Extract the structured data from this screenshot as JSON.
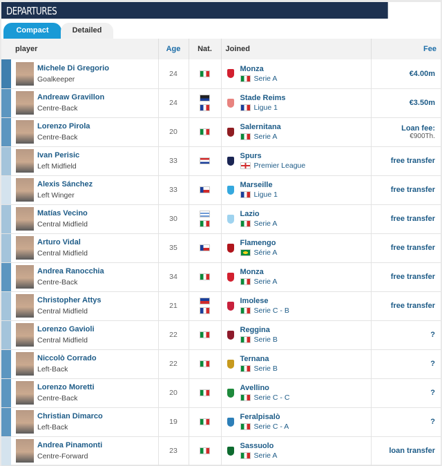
{
  "title": "DEPARTURES",
  "tabs": [
    {
      "label": "Compact",
      "active": true
    },
    {
      "label": "Detailed",
      "active": false
    }
  ],
  "columns": {
    "player": "player",
    "age": "Age",
    "nat": "Nat.",
    "joined": "Joined",
    "fee": "Fee"
  },
  "position_colors": {
    "GK": "#3f7fae",
    "DEF": "#5c96c0",
    "MID": "#a4c4db",
    "FW": "#d4e3ee"
  },
  "rows": [
    {
      "name": "Michele Di Gregorio",
      "position": "Goalkeeper",
      "group": "GK",
      "age": "24",
      "nat": [
        "it"
      ],
      "club": "Monza",
      "club_color": "#d2202f",
      "league_flag": "it",
      "league": "Serie A",
      "fee": "€4.00m"
    },
    {
      "name": "Andreaw Gravillon",
      "position": "Centre-Back",
      "group": "DEF",
      "age": "24",
      "nat": [
        "gp",
        "fr"
      ],
      "club": "Stade Reims",
      "club_color": "#e8837f",
      "league_flag": "fr",
      "league": "Ligue 1",
      "fee": "€3.50m"
    },
    {
      "name": "Lorenzo Pirola",
      "position": "Centre-Back",
      "group": "DEF",
      "age": "20",
      "nat": [
        "it"
      ],
      "club": "Salernitana",
      "club_color": "#8f1d22",
      "league_flag": "it",
      "league": "Serie A",
      "fee": "Loan fee:",
      "fee_sub": "€900Th."
    },
    {
      "name": "Ivan Perisic",
      "position": "Left Midfield",
      "group": "MID",
      "age": "33",
      "nat": [
        "hr"
      ],
      "club": "Spurs",
      "club_color": "#1a2553",
      "league_flag": "en",
      "league": "Premier League",
      "fee": "free transfer"
    },
    {
      "name": "Alexis Sánchez",
      "position": "Left Winger",
      "group": "FW",
      "age": "33",
      "nat": [
        "cl"
      ],
      "club": "Marseille",
      "club_color": "#35a8de",
      "league_flag": "fr",
      "league": "Ligue 1",
      "fee": "free transfer"
    },
    {
      "name": "Matías Vecino",
      "position": "Central Midfield",
      "group": "MID",
      "age": "30",
      "nat": [
        "uy",
        "it"
      ],
      "club": "Lazio",
      "club_color": "#9fd3ef",
      "league_flag": "it",
      "league": "Serie A",
      "fee": "free transfer"
    },
    {
      "name": "Arturo Vidal",
      "position": "Central Midfield",
      "group": "MID",
      "age": "35",
      "nat": [
        "cl"
      ],
      "club": "Flamengo",
      "club_color": "#b0151c",
      "league_flag": "br",
      "league": "Série A",
      "fee": "free transfer"
    },
    {
      "name": "Andrea Ranocchia",
      "position": "Centre-Back",
      "group": "DEF",
      "age": "34",
      "nat": [
        "it"
      ],
      "club": "Monza",
      "club_color": "#d2202f",
      "league_flag": "it",
      "league": "Serie A",
      "fee": "free transfer"
    },
    {
      "name": "Christopher Attys",
      "position": "Central Midfield",
      "group": "MID",
      "age": "21",
      "nat": [
        "ht",
        "fr"
      ],
      "club": "Imolese",
      "club_color": "#c8213c",
      "league_flag": "it",
      "league": "Serie C - B",
      "fee": "free transfer"
    },
    {
      "name": "Lorenzo Gavioli",
      "position": "Central Midfield",
      "group": "MID",
      "age": "22",
      "nat": [
        "it"
      ],
      "club": "Reggina",
      "club_color": "#8e1a2b",
      "league_flag": "it",
      "league": "Serie B",
      "fee": "?"
    },
    {
      "name": "Niccolò Corrado",
      "position": "Left-Back",
      "group": "DEF",
      "age": "22",
      "nat": [
        "it"
      ],
      "club": "Ternana",
      "club_color": "#c79a1e",
      "league_flag": "it",
      "league": "Serie B",
      "fee": "?"
    },
    {
      "name": "Lorenzo Moretti",
      "position": "Centre-Back",
      "group": "DEF",
      "age": "20",
      "nat": [
        "it"
      ],
      "club": "Avellino",
      "club_color": "#1e8a3c",
      "league_flag": "it",
      "league": "Serie C - C",
      "fee": "?"
    },
    {
      "name": "Christian Dimarco",
      "position": "Left-Back",
      "group": "DEF",
      "age": "19",
      "nat": [
        "it"
      ],
      "club": "Feralpisalò",
      "club_color": "#2d7fb8",
      "league_flag": "it",
      "league": "Serie C - A",
      "fee": "?"
    },
    {
      "name": "Andrea Pinamonti",
      "position": "Centre-Forward",
      "group": "FW",
      "age": "23",
      "nat": [
        "it"
      ],
      "club": "Sassuolo",
      "club_color": "#0d6b2f",
      "league_flag": "it",
      "league": "Serie A",
      "fee": "loan transfer"
    }
  ]
}
